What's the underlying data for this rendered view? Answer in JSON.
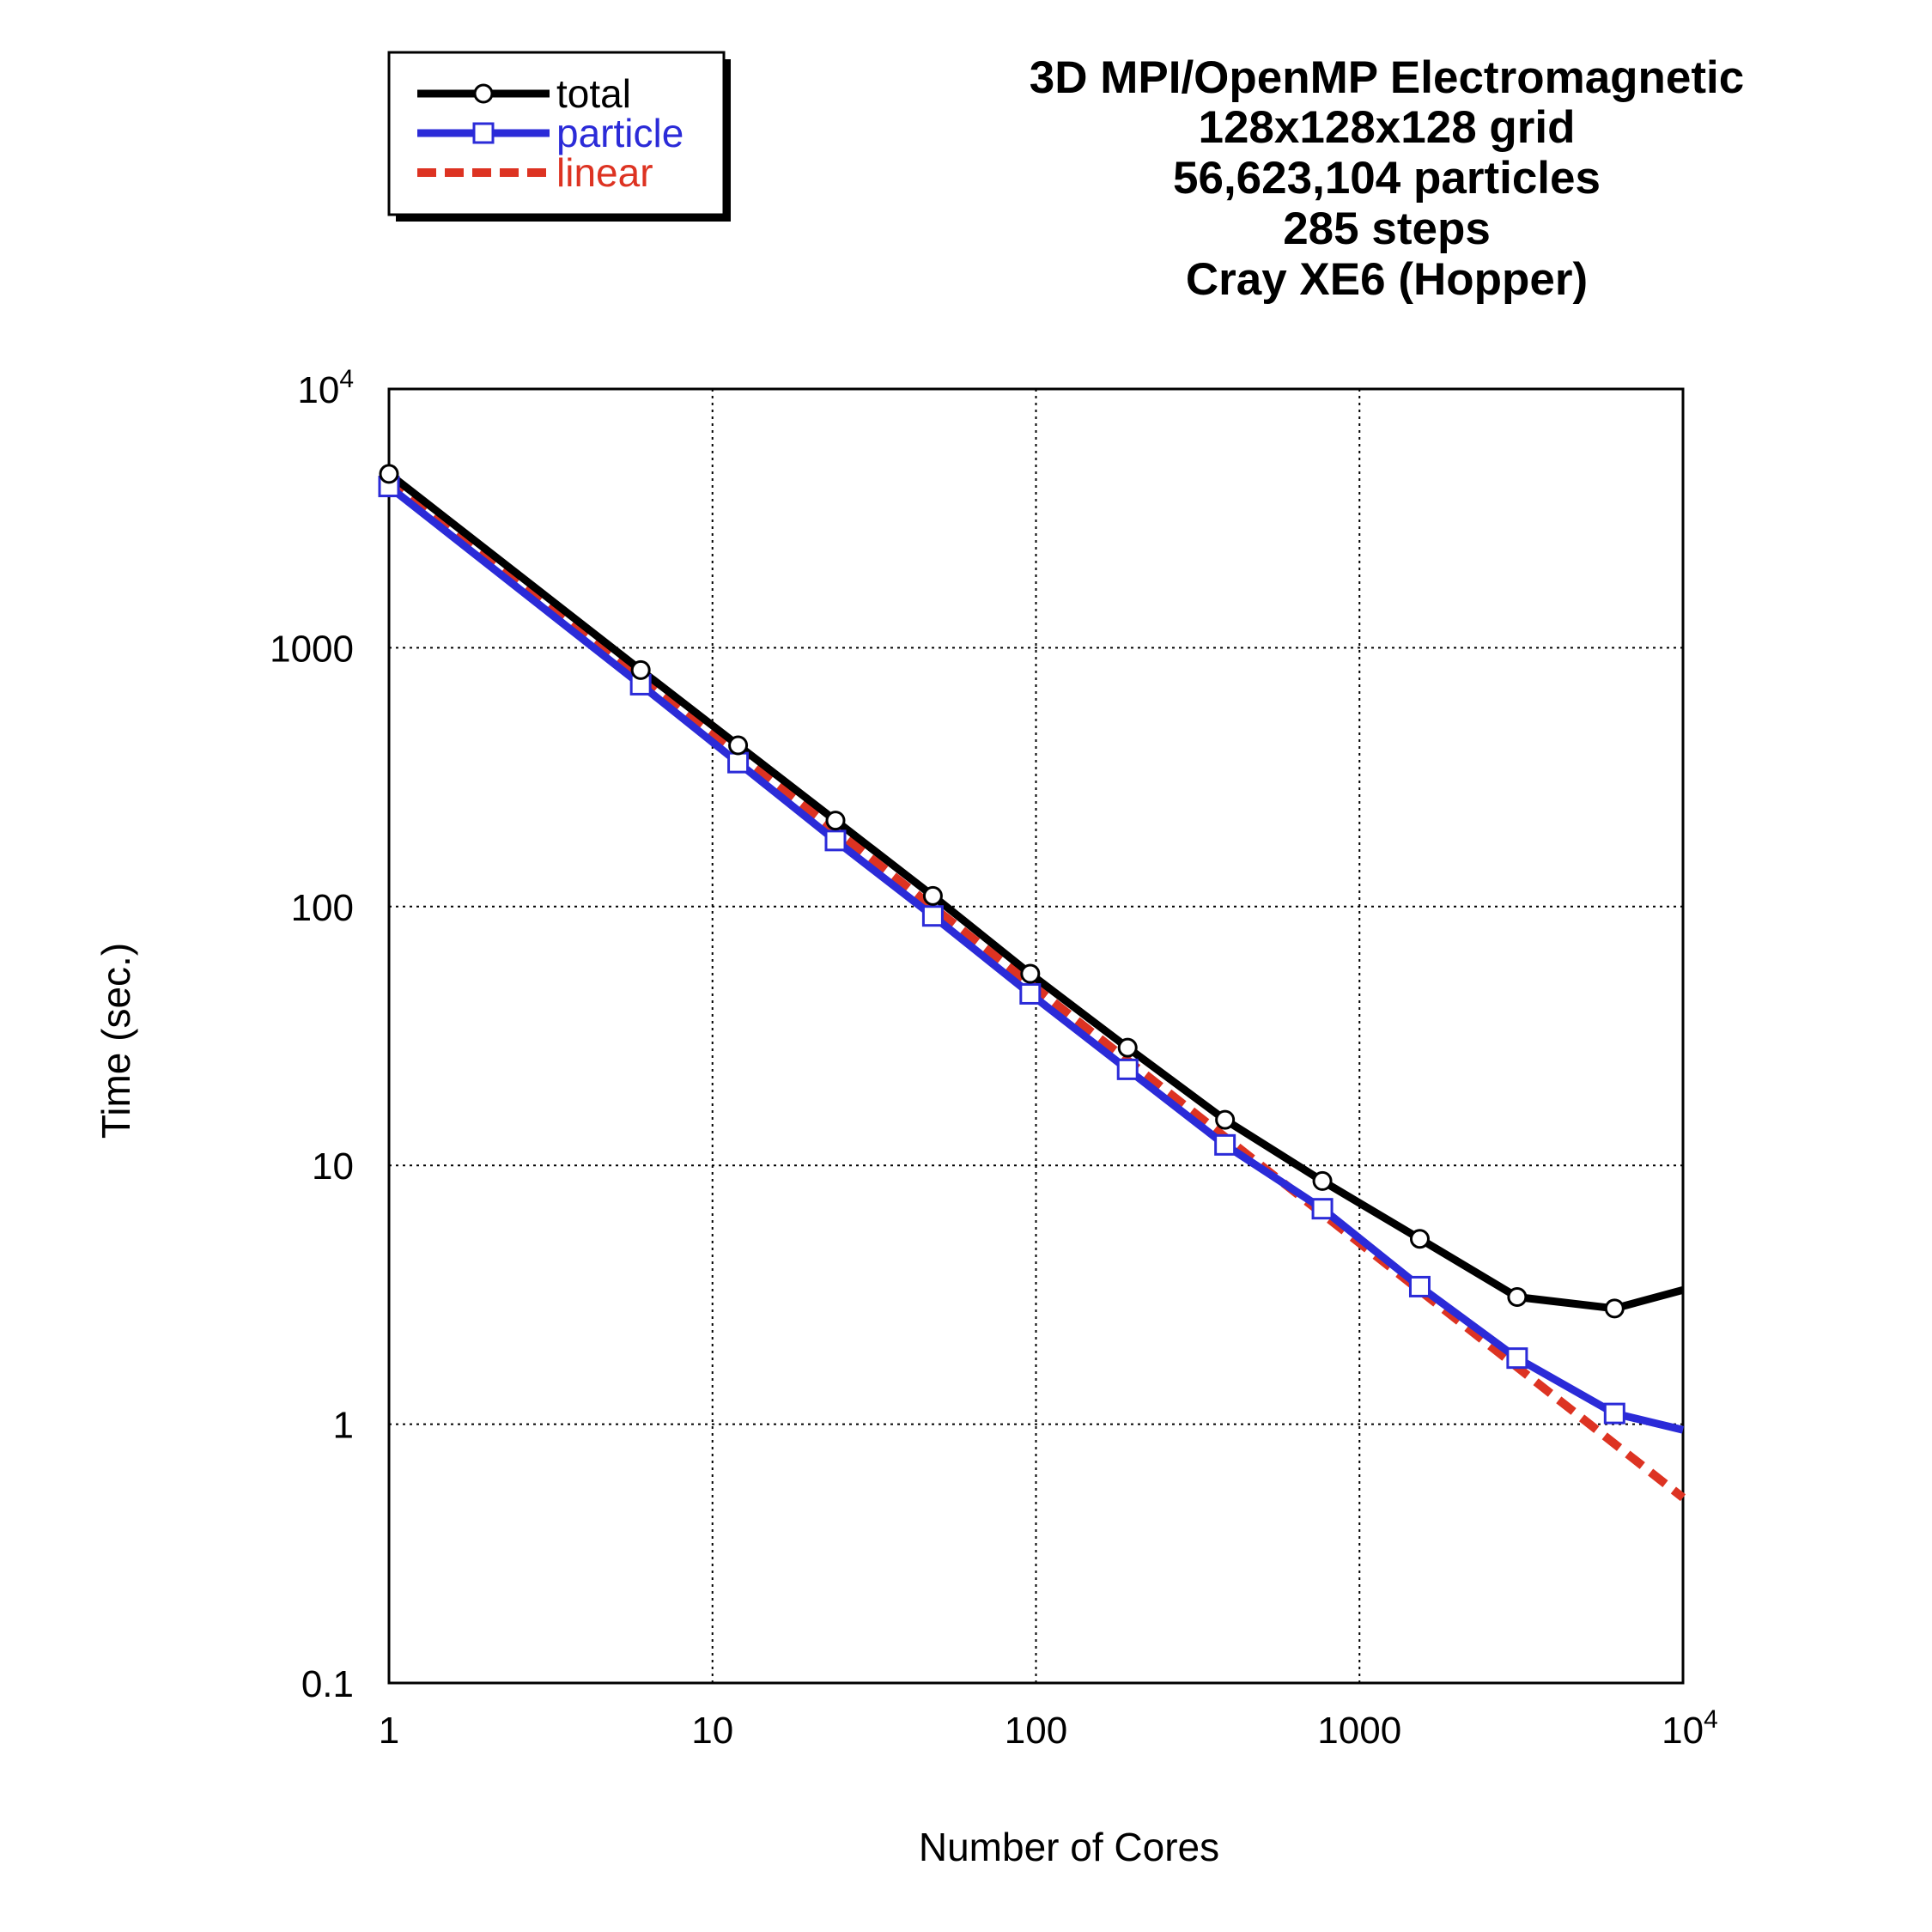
{
  "chart_data": {
    "type": "line",
    "title_lines": [
      "3D MPI/OpenMP Electromagnetic",
      "128x128x128 grid",
      "56,623,104 particles",
      "285 steps",
      "Cray XE6 (Hopper)"
    ],
    "xlabel": "Number of Cores",
    "ylabel": "Time (sec.)",
    "xscale": "log",
    "yscale": "log",
    "xlim": [
      1,
      10000
    ],
    "ylim": [
      0.1,
      10000
    ],
    "grid": true,
    "legend_position": "top-left",
    "x_ticks": [
      {
        "value": 1,
        "base": "1",
        "exp": ""
      },
      {
        "value": 10,
        "base": "10",
        "exp": ""
      },
      {
        "value": 100,
        "base": "100",
        "exp": ""
      },
      {
        "value": 1000,
        "base": "1000",
        "exp": ""
      },
      {
        "value": 10000,
        "base": "10",
        "exp": "4"
      }
    ],
    "y_ticks": [
      {
        "value": 0.1,
        "base": "0.1",
        "exp": ""
      },
      {
        "value": 1,
        "base": "1",
        "exp": ""
      },
      {
        "value": 10,
        "base": "10",
        "exp": ""
      },
      {
        "value": 100,
        "base": "100",
        "exp": ""
      },
      {
        "value": 1000,
        "base": "1000",
        "exp": ""
      },
      {
        "value": 10000,
        "base": "10",
        "exp": "4"
      }
    ],
    "series": [
      {
        "name": "total",
        "color": "#000000",
        "line_style": "solid",
        "marker": "circle",
        "x": [
          1,
          6,
          12,
          24,
          48,
          96,
          192,
          384,
          768,
          1536,
          3072,
          6144,
          10000
        ],
        "y": [
          4700,
          820,
          420,
          215,
          110,
          55,
          28.5,
          15,
          8.7,
          5.2,
          3.1,
          2.8,
          3.3
        ]
      },
      {
        "name": "particle",
        "color": "#2b2bd8",
        "line_style": "solid",
        "marker": "square",
        "x": [
          1,
          6,
          12,
          24,
          48,
          96,
          192,
          384,
          768,
          1536,
          3072,
          6144,
          10000
        ],
        "y": [
          4200,
          720,
          360,
          180,
          92,
          46,
          23.5,
          12,
          6.8,
          3.4,
          1.8,
          1.1,
          0.95
        ]
      },
      {
        "name": "linear",
        "color": "#dd3322",
        "line_style": "dashed",
        "marker": "none",
        "x": [
          1,
          10000
        ],
        "y": [
          4500,
          0.52
        ]
      }
    ]
  }
}
